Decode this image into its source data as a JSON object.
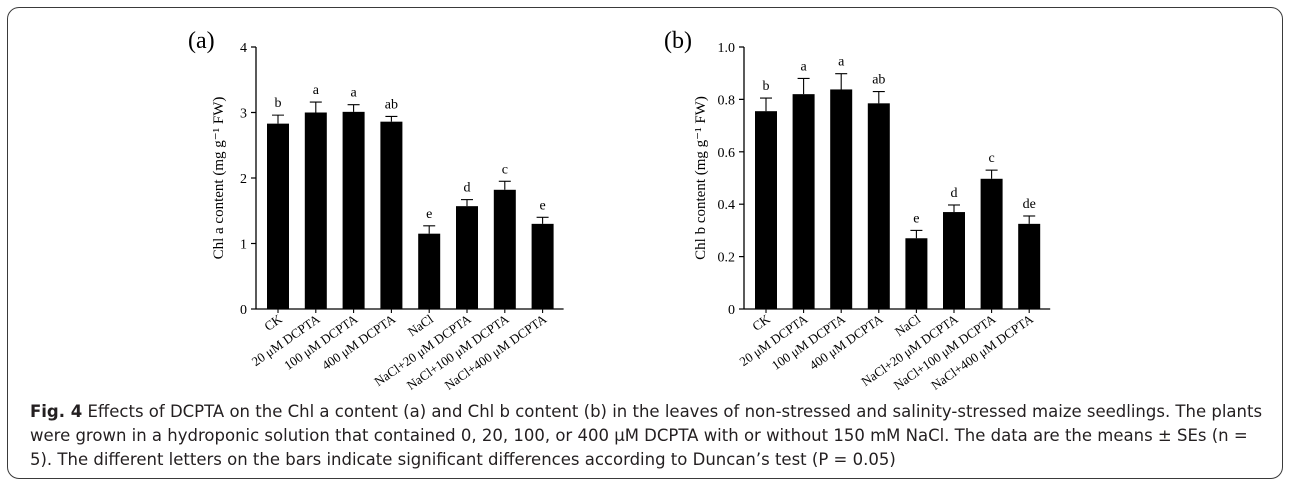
{
  "caption": {
    "label": "Fig. 4",
    "text": "Effects of DCPTA on the Chl a content (a) and Chl b content (b) in the leaves of non-stressed and salinity-stressed maize seedlings. The plants were grown in a hydroponic solution that contained 0, 20, 100, or 400 μM DCPTA with or without 150 mM NaCl. The data are the means ± SEs (n = 5). The different letters on the bars indicate significant differences according to Duncan’s test (P = 0.05)"
  },
  "chart_data": [
    {
      "type": "bar",
      "panel_label": "(a)",
      "ylabel": "Chl a content (mg g⁻¹ FW)",
      "ylim": [
        0,
        4
      ],
      "yticks": [
        0,
        1,
        2,
        3,
        4
      ],
      "categories": [
        "CK",
        "20 μM DCPTA",
        "100 μM DCPTA",
        "400 μM DCPTA",
        "NaCl",
        "NaCl+20 μM DCPTA",
        "NaCl+100 μM DCPTA",
        "NaCl+400 μM DCPTA"
      ],
      "values": [
        2.83,
        3.0,
        3.01,
        2.86,
        1.15,
        1.57,
        1.82,
        1.3
      ],
      "errors": [
        0.13,
        0.16,
        0.11,
        0.08,
        0.12,
        0.1,
        0.13,
        0.1
      ],
      "letters": [
        "b",
        "a",
        "a",
        "ab",
        "e",
        "d",
        "c",
        "e"
      ],
      "bar_color": "#000000"
    },
    {
      "type": "bar",
      "panel_label": "(b)",
      "ylabel": "Chl b content (mg g⁻¹ FW)",
      "ylim": [
        0,
        1.0
      ],
      "yticks": [
        "0",
        "0.2",
        "0.4",
        "0.6",
        "0.8",
        "1.0"
      ],
      "categories": [
        "CK",
        "20 μM DCPTA",
        "100 μM DCPTA",
        "400 μM DCPTA",
        "NaCl",
        "NaCl+20 μM DCPTA",
        "NaCl+100 μM DCPTA",
        "NaCl+400 μM DCPTA"
      ],
      "values": [
        0.755,
        0.82,
        0.838,
        0.785,
        0.27,
        0.37,
        0.497,
        0.325
      ],
      "errors": [
        0.05,
        0.06,
        0.06,
        0.045,
        0.03,
        0.027,
        0.033,
        0.03
      ],
      "letters": [
        "b",
        "a",
        "a",
        "ab",
        "e",
        "d",
        "c",
        "de"
      ],
      "bar_color": "#000000"
    }
  ]
}
